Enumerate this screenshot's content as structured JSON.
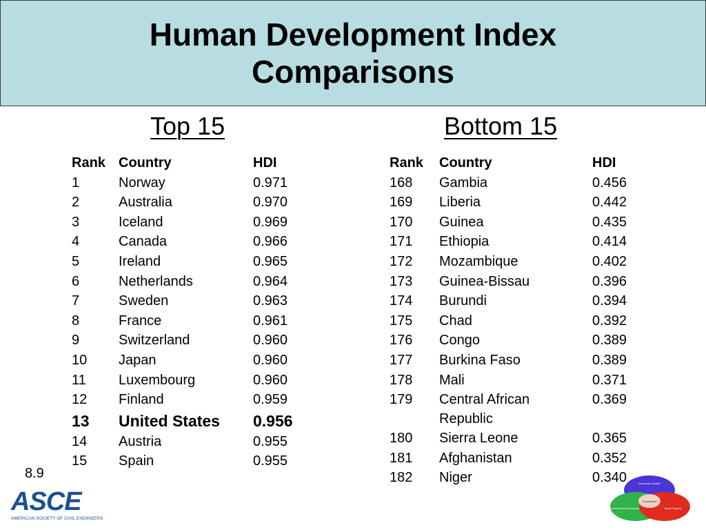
{
  "title": {
    "line1": "Human Development Index",
    "line2": "Comparisons"
  },
  "top": {
    "heading": "Top 15",
    "headers": {
      "rank": "Rank",
      "country": "Country",
      "hdi": "HDI"
    },
    "rows": [
      {
        "rank": "1",
        "country": "Norway",
        "hdi": "0.971"
      },
      {
        "rank": "2",
        "country": "Australia",
        "hdi": "0.970"
      },
      {
        "rank": "3",
        "country": "Iceland",
        "hdi": "0.969"
      },
      {
        "rank": "4",
        "country": "Canada",
        "hdi": "0.966"
      },
      {
        "rank": "5",
        "country": "Ireland",
        "hdi": "0.965"
      },
      {
        "rank": "6",
        "country": "Netherlands",
        "hdi": "0.964"
      },
      {
        "rank": "7",
        "country": "Sweden",
        "hdi": "0.963"
      },
      {
        "rank": "8",
        "country": "France",
        "hdi": "0.961"
      },
      {
        "rank": "9",
        "country": "Switzerland",
        "hdi": "0.960"
      },
      {
        "rank": "10",
        "country": "Japan",
        "hdi": "0.960"
      },
      {
        "rank": "11",
        "country": "Luxembourg",
        "hdi": "0.960"
      },
      {
        "rank": "12",
        "country": "Finland",
        "hdi": "0.959"
      },
      {
        "rank": "13",
        "country": "United States",
        "hdi": "0.956"
      },
      {
        "rank": "14",
        "country": "Austria",
        "hdi": "0.955"
      },
      {
        "rank": "15",
        "country": "Spain",
        "hdi": "0.955"
      }
    ]
  },
  "bottom": {
    "heading": "Bottom 15",
    "headers": {
      "rank": "Rank",
      "country": "Country",
      "hdi": "HDI"
    },
    "rows": [
      {
        "rank": "168",
        "country": "Gambia",
        "hdi": "0.456"
      },
      {
        "rank": "169",
        "country": "Liberia",
        "hdi": "0.442"
      },
      {
        "rank": "170",
        "country": "Guinea",
        "hdi": "0.435"
      },
      {
        "rank": "171",
        "country": "Ethiopia",
        "hdi": "0.414"
      },
      {
        "rank": "172",
        "country": "Mozambique",
        "hdi": "0.402"
      },
      {
        "rank": "173",
        "country": "Guinea-Bissau",
        "hdi": "0.396"
      },
      {
        "rank": "174",
        "country": "Burundi",
        "hdi": "0.394"
      },
      {
        "rank": "175",
        "country": "Chad",
        "hdi": "0.392"
      },
      {
        "rank": "176",
        "country": "Congo",
        "hdi": "0.389"
      },
      {
        "rank": "177",
        "country": "Burkina Faso",
        "hdi": "0.389"
      },
      {
        "rank": "178",
        "country": "Mali",
        "hdi": "0.371"
      },
      {
        "rank": "179",
        "country": "Central African Republic",
        "hdi": "0.369"
      },
      {
        "rank": "180",
        "country": "Sierra Leone",
        "hdi": "0.365"
      },
      {
        "rank": "181",
        "country": "Afghanistan",
        "hdi": "0.352"
      },
      {
        "rank": "182",
        "country": "Niger",
        "hdi": "0.340"
      }
    ]
  },
  "slide_number": "8.9",
  "logo": {
    "text": "ASCE",
    "subtext": "AMERICAN SOCIETY OF CIVIL ENGINEERS"
  },
  "venn": {
    "center_label": "Sustainable",
    "top_label": "Economic Growth",
    "left_label": "Environmental Stewardship",
    "right_label": "Social Progress",
    "colors": {
      "top": "#4a35d6",
      "left": "#2fb34a",
      "right": "#e02b1f",
      "center": "#f0d2c8"
    }
  },
  "colors": {
    "banner": "#b7dde2",
    "logo": "#1d4f91"
  }
}
